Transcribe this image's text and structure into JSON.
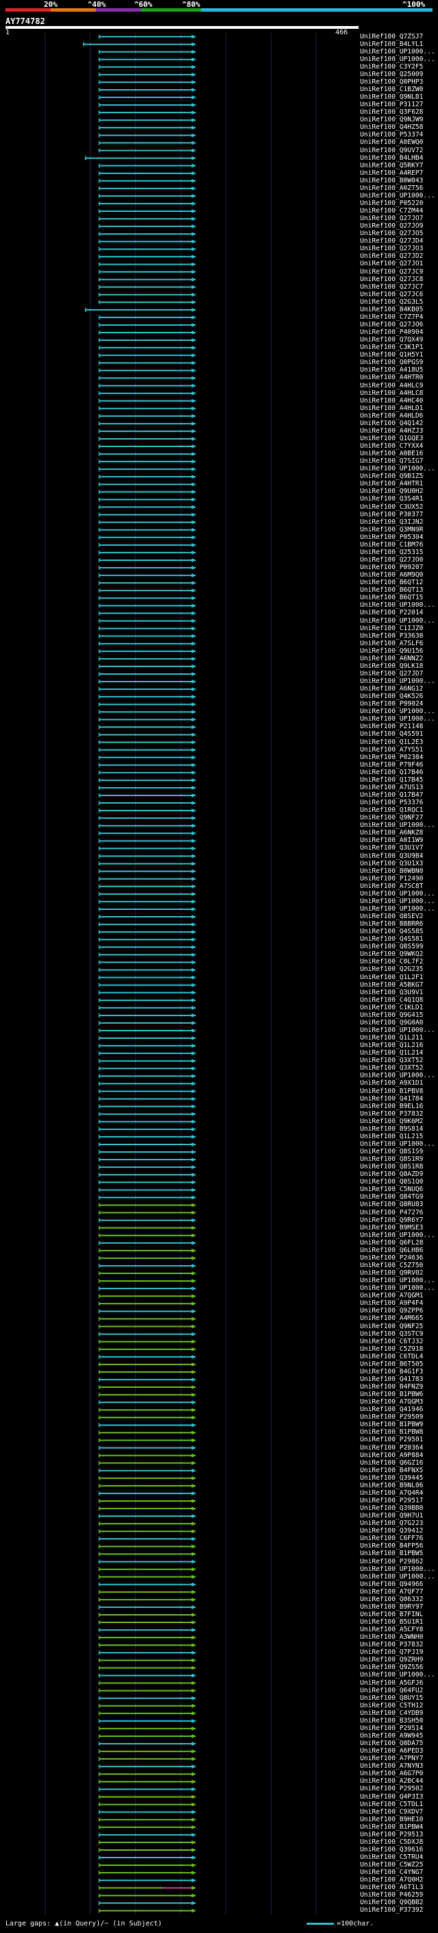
{
  "scale": {
    "labels": [
      "20%",
      "^40%",
      "^60%",
      "^80%",
      "^100%"
    ],
    "colors": [
      "#e0202a",
      "#e07a1a",
      "#8a2fa8",
      "#1fa01f",
      "#28b8d8"
    ]
  },
  "query": {
    "title": "AY774782",
    "start": "1",
    "end": "466"
  },
  "hit_color_cyan": "#33c4d4",
  "hit_color_green": "#6cc020",
  "hit_color_magenta": "#e0208a",
  "hits": [
    "UniRef100_Q7ZSJ7",
    "UniRef100_B4LYL1",
    "UniRef100_UP1000...",
    "UniRef100_UP1000...",
    "UniRef100_C3Y2F5",
    "UniRef100_Q25009",
    "UniRef100_Q0PHP3",
    "UniRef100_C1BZW0",
    "UniRef100_Q9NLB1",
    "UniRef100_P31127",
    "UniRef100_Q3F628",
    "UniRef100_Q9NJW9",
    "UniRef100_Q4HZ58",
    "UniRef100_P53374",
    "UniRef100_A0EWQ0",
    "UniRef100_Q9UV72",
    "UniRef100_B4LHB4",
    "UniRef100_Q5RKY7",
    "UniRef100_A4REP7",
    "UniRef100_B0W043",
    "UniRef100_A0ZT56",
    "UniRef100_UP1000...",
    "UniRef100_P05220",
    "UniRef100_C7ZM44",
    "UniRef100_Q27JO7",
    "UniRef100_Q27JO9",
    "UniRef100_Q27JO5",
    "UniRef100_Q27JD4",
    "UniRef100_Q27JO3",
    "UniRef100_Q27JD2",
    "UniRef100_Q27JO1",
    "UniRef100_Q27JC9",
    "UniRef100_Q27JC8",
    "UniRef100_Q27JC7",
    "UniRef100_Q27JC6",
    "UniRef100_Q2G3L5",
    "UniRef100_B4KB05",
    "UniRef100_C7Z7P4",
    "UniRef100_Q27JO6",
    "UniRef100_P40904",
    "UniRef100_Q7QX49",
    "UniRef100_C3K1P1",
    "UniRef100_Q1H5Y1",
    "UniRef100_Q0PGS9",
    "UniRef100_A418U5",
    "UniRef100_A4HTR0",
    "UniRef100_A4HLC9",
    "UniRef100_A4HLC8",
    "UniRef100_A4HC40",
    "UniRef100_A4HLD1",
    "UniRef100_A4HLD6",
    "UniRef100_Q4Q142",
    "UniRef100_A4HZJ3",
    "UniRef100_Q1GQE3",
    "UniRef100_C7YXX4",
    "UniRef100_A0BE16",
    "UniRef100_Q7SIG7",
    "UniRef100_UP1000...",
    "UniRef100_Q9B1Z5",
    "UniRef100_A4HTR1",
    "UniRef100_Q9U0H2",
    "UniRef100_Q3S4R1",
    "UniRef100_C3UX52",
    "UniRef100_P30377",
    "UniRef100_Q3IJN2",
    "UniRef100_Q3MN9R",
    "UniRef100_P05304",
    "UniRef100_C1BM76",
    "UniRef100_Q25315",
    "UniRef100_Q27JO0",
    "UniRef100_P09207",
    "UniRef100_A6M9Q0",
    "UniRef100_B6QT12",
    "UniRef100_B6QT13",
    "UniRef100_B6QT15",
    "UniRef100_UP1000...",
    "UniRef100_P22014",
    "UniRef100_UP1000...",
    "UniRef100_C1IJZ0",
    "UniRef100_P33630",
    "UniRef100_A7SLF6",
    "UniRef100_Q9U156",
    "UniRef100_A6NNZ2",
    "UniRef100_Q9LK18",
    "UniRef100_Q27JD7",
    "UniRef100_UP1000...",
    "UniRef100_A6NG12",
    "UniRef100_Q4K526",
    "UniRef100_P99024",
    "UniRef100_UP1000...",
    "UniRef100_UP1000...",
    "UniRef100_P21148",
    "UniRef100_Q4S591",
    "UniRef100_Q1L2E3",
    "UniRef100_A7YS51",
    "UniRef100_P02384",
    "UniRef100_P79F46",
    "UniRef100_Q17B46",
    "UniRef100_Q17B45",
    "UniRef100_A7US13",
    "UniRef100_Q17B47",
    "UniRef100_P53376",
    "UniRef100_Q1RQC1",
    "UniRef100_Q9NF27",
    "UniRef100_UP1000...",
    "UniRef100_A6NKZ8",
    "UniRef100_A0I1W9",
    "UniRef100_Q3U1V7",
    "UniRef100_Q3U9B4",
    "UniRef100_Q3U1X3",
    "UniRef100_B0WBN0",
    "UniRef100_P12490",
    "UniRef100_A7SC8T",
    "UniRef100_UP1000...",
    "UniRef100_UP1000...",
    "UniRef100_UP1000...",
    "UniRef100_Q8SEV2",
    "UniRef100_B8BRR6",
    "UniRef100_Q4S585",
    "UniRef100_Q4S581",
    "UniRef100_Q8S599",
    "UniRef100_Q9WKQ2",
    "UniRef100_C0L7F2",
    "UniRef100_Q2G235",
    "UniRef100_Q1L2F1",
    "UniRef100_A5BKG7",
    "UniRef100_Q3U9V1",
    "UniRef100_C4Q1Q8",
    "UniRef100_C1KLD1",
    "UniRef100_Q9G415",
    "UniRef100_Q9G0A0",
    "UniRef100_UP1000...",
    "UniRef100_Q1L211",
    "UniRef100_Q1L216",
    "UniRef100_Q1L214",
    "UniRef100_Q3XT52",
    "UniRef100_Q3XT52",
    "UniRef100_UP1000...",
    "UniRef100_A9X1D1",
    "UniRef100_B1PBV8",
    "UniRef100_Q41784",
    "UniRef100_B9EL16",
    "UniRef100_P37832",
    "UniRef100_Q9K6M2",
    "UniRef100_B9S814",
    "UniRef100_Q1L215",
    "UniRef100_UP1000...",
    "UniRef100_Q8S1S9",
    "UniRef100_Q8S1R9",
    "UniRef100_Q8S1R8",
    "UniRef100_Q8AZD9",
    "UniRef100_Q8S1Q0",
    "UniRef100_C5NUQ6",
    "UniRef100_Q84TG9",
    "UniRef100_Q8RU83",
    "UniRef100_P47276",
    "UniRef100_Q9R6Y7",
    "UniRef100_B9MSE3",
    "UniRef100_UP1000...",
    "UniRef100_Q6FL28",
    "UniRef100_Q6LH86",
    "UniRef100_P24636",
    "UniRef100_C5Z750",
    "UniRef100_Q9RV02",
    "UniRef100_UP1000...",
    "UniRef100_UP1000...",
    "UniRef100_A7QGM1",
    "UniRef100_A9P4F4",
    "UniRef100_Q9ZPP6",
    "UniRef100_A4M665",
    "UniRef100_Q9NF25",
    "UniRef100_Q3STC9",
    "UniRef100_C6TJ32",
    "UniRef100_C5Z918",
    "UniRef100_C6TDL4",
    "UniRef100_B6T505",
    "UniRef100_B4G1F3",
    "UniRef100_Q41783",
    "UniRef100_B4FNZ9",
    "UniRef100_B1PBW6",
    "UniRef100_A7QGM3",
    "UniRef100_Q41946",
    "UniRef100_P29509",
    "UniRef100_B1PBW9",
    "UniRef100_B1PBW8",
    "UniRef100_P29501",
    "UniRef100_P20364",
    "UniRef100_A9P884",
    "UniRef100_Q6GZ16",
    "UniRef100_B4FNX5",
    "UniRef100_Q39445",
    "UniRef100_B9NL06",
    "UniRef100_A7Q4R4",
    "UniRef100_P29517",
    "UniRef100_Q39BB0",
    "UniRef100_Q9H7U1",
    "UniRef100_Q7G223",
    "UniRef100_Q39412",
    "UniRef100_C6FF76",
    "UniRef100_B4FP56",
    "UniRef100_B1PBW5",
    "UniRef100_P29862",
    "UniRef100_UP1000...",
    "UniRef100_UP1000...",
    "UniRef100_Q94966",
    "UniRef100_A7QF77",
    "UniRef100_Q06332",
    "UniRef100_B9RY97",
    "UniRef100_B7FINL",
    "UniRef100_B5U1R1",
    "UniRef100_A5CFY8",
    "UniRef100_A3WNH0",
    "UniRef100_P37832",
    "UniRef100_Q7PJ19",
    "UniRef100_Q9ZRH9",
    "UniRef100_Q9ZS56",
    "UniRef100_UP1000...",
    "UniRef100_A5GFJ6",
    "UniRef100_Q64FU2",
    "UniRef100_Q8UY15",
    "UniRef100_C5TH12",
    "UniRef100_C4YDB9",
    "UniRef100_B3SH50",
    "UniRef100_P29514",
    "UniRef100_A9W945",
    "UniRef100_Q0DA75",
    "UniRef100_A6PED3",
    "UniRef100_A7PNY7",
    "UniRef100_A7NYN3",
    "UniRef100_A6G7P0",
    "UniRef100_A2BC44",
    "UniRef100_P29502",
    "UniRef100_Q4P3I3",
    "UniRef100_C5TDL1",
    "UniRef100_C9XDV7",
    "UniRef100_B9HE10",
    "UniRef100_B1PBW4",
    "UniRef100_P29513",
    "UniRef100_C5DXJ8",
    "UniRef100_Q39616",
    "UniRef100_C5TRU4",
    "UniRef100_C5WZ25",
    "UniRef100_C4YNG7",
    "UniRef100_A7Q0H2",
    "UniRef100_A6T1L3",
    "UniRef100_P46259",
    "UniRef100_Q9QBB2",
    "UniRef100_P37392"
  ],
  "legend": {
    "left": "Large gaps: ▲(in Query)/~ (in Subject)",
    "right": "=100char."
  }
}
